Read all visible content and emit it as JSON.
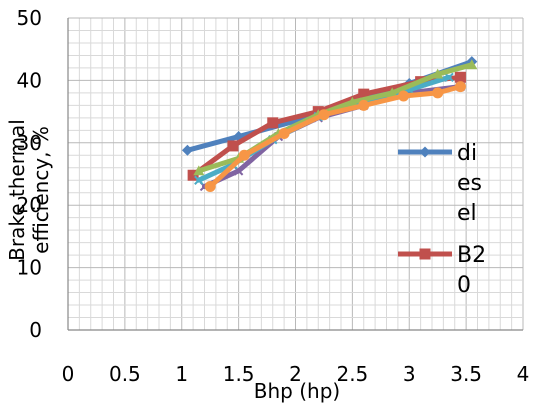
{
  "chart_data": {
    "type": "line",
    "title": "",
    "xlabel": "Bhp (hp)",
    "ylabel_lines": [
      "Brake thermal",
      "efficiency, %"
    ],
    "xlim": [
      0,
      4
    ],
    "ylim": [
      0,
      50
    ],
    "x_ticks": [
      "0",
      "0.5",
      "1",
      "1.5",
      "2",
      "2.5",
      "3",
      "3.5",
      "4"
    ],
    "y_ticks": [
      "0",
      "10",
      "20",
      "30",
      "40",
      "50"
    ],
    "grid": true,
    "legend_position": "right, overlapping plot",
    "series": [
      {
        "name": "diesel",
        "legend_lines": [
          "di",
          "es",
          "el"
        ],
        "color": "#4F81BD",
        "marker": "diamond",
        "x": [
          1.05,
          1.5,
          2.0,
          2.5,
          3.0,
          3.55
        ],
        "y": [
          28.8,
          31.0,
          33.5,
          36.5,
          39.5,
          43.0
        ]
      },
      {
        "name": "B20",
        "legend_lines": [
          "B2",
          "0"
        ],
        "color": "#C0504D",
        "marker": "square",
        "x": [
          1.1,
          1.45,
          1.8,
          2.2,
          2.6,
          3.1,
          3.45
        ],
        "y": [
          24.8,
          29.5,
          33.2,
          35.0,
          37.8,
          39.8,
          40.5
        ]
      },
      {
        "name": "",
        "color": "#8064A2",
        "marker": "x",
        "x": [
          1.2,
          1.5,
          1.85,
          2.2,
          2.6,
          3.0,
          3.45
        ],
        "y": [
          23.0,
          25.5,
          31.0,
          34.0,
          36.0,
          38.0,
          39.0
        ]
      },
      {
        "name": "",
        "color": "#4BACC6",
        "marker": "x",
        "x": [
          1.15,
          1.45,
          1.8,
          2.2,
          2.6,
          3.0,
          3.35
        ],
        "y": [
          24.0,
          26.5,
          30.5,
          34.2,
          36.5,
          38.5,
          40.5
        ]
      },
      {
        "name": "",
        "color": "#9BBB59",
        "marker": "triangle",
        "x": [
          1.15,
          1.5,
          1.85,
          2.2,
          2.5,
          2.85,
          3.25,
          3.55
        ],
        "y": [
          25.5,
          27.5,
          31.5,
          34.5,
          36.5,
          38.0,
          41.0,
          42.5
        ]
      },
      {
        "name": "",
        "color": "#F79646",
        "marker": "circle",
        "x": [
          1.25,
          1.55,
          1.9,
          2.25,
          2.6,
          2.95,
          3.25,
          3.45
        ],
        "y": [
          23.0,
          28.0,
          31.5,
          34.5,
          36.0,
          37.5,
          38.0,
          39.0
        ]
      }
    ]
  }
}
